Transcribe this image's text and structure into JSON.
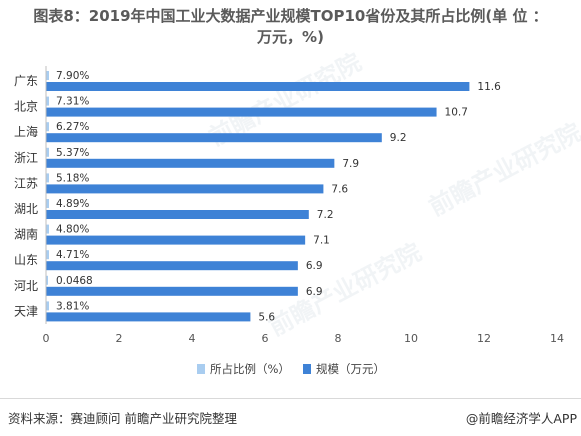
{
  "title": {
    "line1": "图表8：2019年中国工业大数据产业规模TOP10省份及其所占比例(单 位 ：",
    "line2": "万元，%)"
  },
  "chart_data": {
    "type": "bar",
    "orientation": "horizontal",
    "categories": [
      "广东",
      "北京",
      "上海",
      "浙江",
      "江苏",
      "湖北",
      "湖南",
      "山东",
      "河北",
      "天津"
    ],
    "series": [
      {
        "name": "所占比例（%）",
        "color": "#a9cdf0",
        "values": [
          7.9,
          7.31,
          6.27,
          5.37,
          5.18,
          4.89,
          4.8,
          4.71,
          0.0468,
          3.81
        ],
        "labels": [
          "7.90%",
          "7.31%",
          "6.27%",
          "5.37%",
          "5.18%",
          "4.89%",
          "4.80%",
          "4.71%",
          "0.0468",
          "3.81%"
        ]
      },
      {
        "name": "规模（万元）",
        "color": "#3e82d6",
        "values": [
          11.6,
          10.7,
          9.2,
          7.9,
          7.6,
          7.2,
          7.1,
          6.9,
          6.9,
          5.6
        ],
        "labels": [
          "11.6",
          "10.7",
          "9.2",
          "7.9",
          "7.6",
          "7.2",
          "7.1",
          "6.9",
          "6.9",
          "5.6"
        ]
      }
    ],
    "xlim": [
      0,
      14
    ],
    "xticks": [
      "0",
      "2",
      "4",
      "6",
      "8",
      "10",
      "12",
      "14"
    ],
    "grid": false,
    "legend": "bottom-center"
  },
  "footer": {
    "source": "资料来源：赛迪顾问 前瞻产业研究院整理",
    "brand": "@前瞻经济学人APP"
  },
  "watermark": "前瞻产业研究院"
}
